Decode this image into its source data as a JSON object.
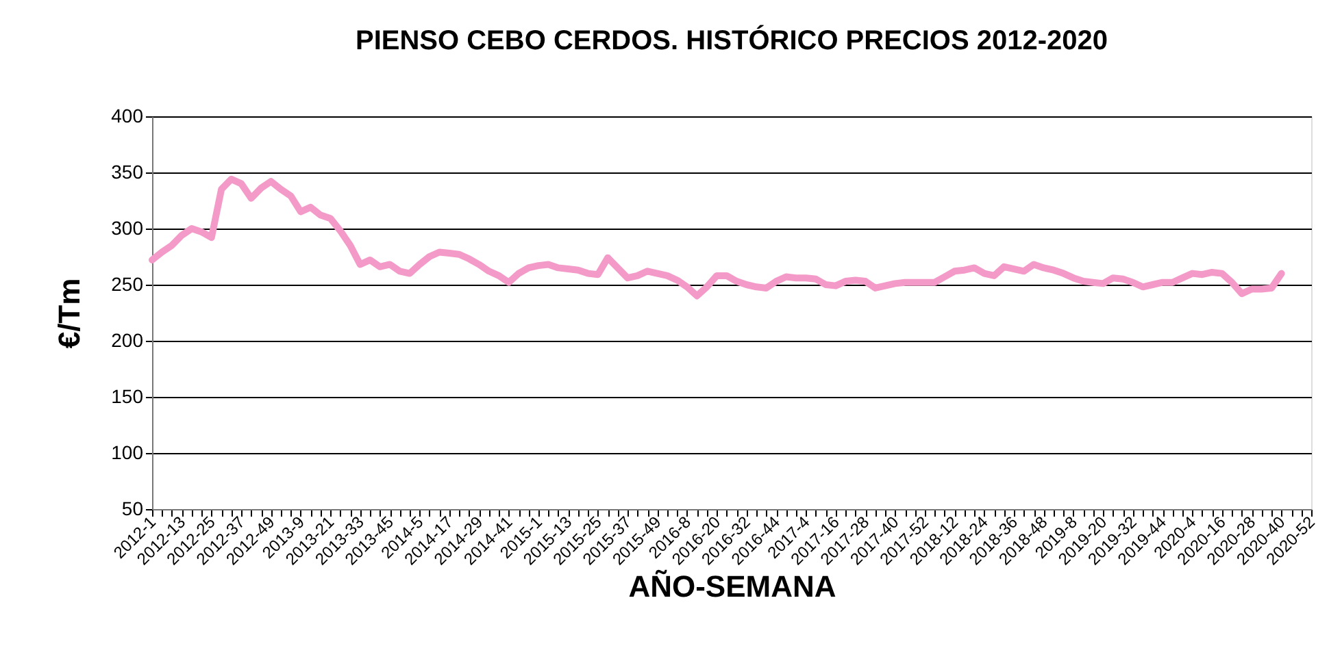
{
  "chart_data": {
    "type": "line",
    "title": "PIENSO CEBO CERDOS. HISTÓRICO PRECIOS 2012-2020",
    "xlabel": "AÑO-SEMANA",
    "ylabel": "€/Tm",
    "categories": [
      "2012-1",
      null,
      null,
      "2012-13",
      null,
      null,
      "2012-25",
      null,
      null,
      "2012-37",
      null,
      null,
      "2012-49",
      null,
      null,
      "2013-9",
      null,
      null,
      "2013-21",
      null,
      null,
      "2013-33",
      null,
      null,
      "2013-45",
      null,
      null,
      "2014-5",
      null,
      null,
      "2014-17",
      null,
      null,
      "2014-29",
      null,
      null,
      "2014-41",
      null,
      null,
      "2015-1",
      null,
      null,
      "2015-13",
      null,
      null,
      "2015-25",
      null,
      null,
      "2015-37",
      null,
      null,
      "2015-49",
      null,
      null,
      "2016-8",
      null,
      null,
      "2016-20",
      null,
      null,
      "2016-32",
      null,
      null,
      "2016-44",
      null,
      null,
      "2017-4",
      null,
      null,
      "2017-16",
      null,
      null,
      "2017-28",
      null,
      null,
      "2017-40",
      null,
      null,
      "2017-52",
      null,
      null,
      "2018-12",
      null,
      null,
      "2018-24",
      null,
      null,
      "2018-36",
      null,
      null,
      "2018-48",
      null,
      null,
      "2019-8",
      null,
      null,
      "2019-20",
      null,
      null,
      "2019-32",
      null,
      null,
      "2019-44",
      null,
      null,
      "2020-4",
      null,
      null,
      "2020-16",
      null,
      null,
      "2020-28",
      null,
      null,
      "2020-40",
      null,
      null,
      "2020-52"
    ],
    "series": [
      {
        "color": "#f49ac8",
        "values": [
          272,
          279,
          285,
          294,
          300,
          297,
          292,
          335,
          344,
          340,
          327,
          336,
          342,
          335,
          329,
          315,
          319,
          312,
          309,
          298,
          285,
          268,
          272,
          266,
          268,
          262,
          260,
          268,
          275,
          279,
          278,
          277,
          273,
          268,
          262,
          258,
          252,
          260,
          265,
          267,
          268,
          265,
          264,
          263,
          260,
          259,
          274,
          265,
          256,
          258,
          262,
          260,
          258,
          254,
          248,
          240,
          248,
          258,
          258,
          253,
          250,
          248,
          247,
          253,
          257,
          256,
          256,
          255,
          250,
          249,
          253,
          254,
          253,
          247,
          249,
          251,
          252,
          252,
          252,
          252,
          257,
          262,
          263,
          265,
          260,
          258,
          266,
          264,
          262,
          268,
          265,
          263,
          260,
          256,
          253,
          252,
          251,
          256,
          255,
          252,
          248,
          250,
          252,
          252,
          256,
          260,
          259,
          261,
          260,
          252,
          242,
          246,
          246,
          247,
          260,
          null,
          null,
          null
        ]
      }
    ],
    "ylim": [
      50,
      400
    ],
    "yticks": [
      50,
      100,
      150,
      200,
      250,
      300,
      350,
      400
    ],
    "grid": "y"
  }
}
